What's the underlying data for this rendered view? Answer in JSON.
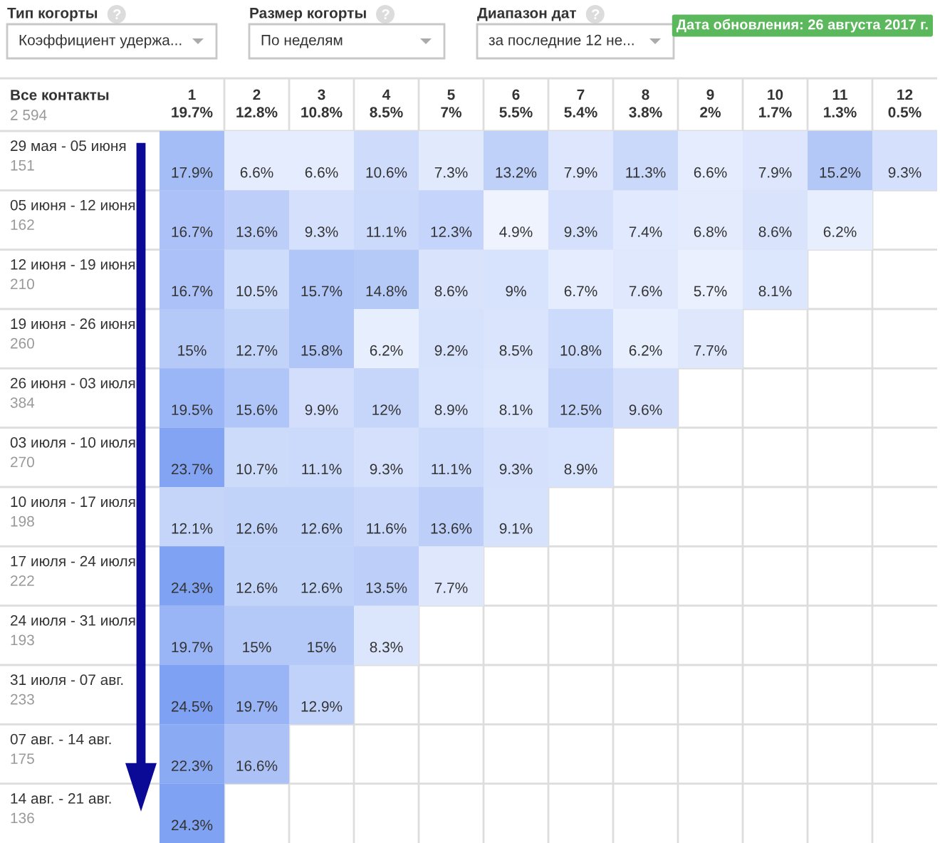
{
  "chart_data": {
    "type": "heatmap",
    "annotations": [
      "Тип когорты",
      "Коэффициент удержа...",
      "Размер когорты",
      "По неделям",
      "Диапазон дат",
      "за последние 12 не...",
      "Дата обновления: 26 августа 2017 г."
    ],
    "ylabel": "Все контакты",
    "y2label": "2 594",
    "categories": [
      "1\n19.7%",
      "2\n12.8%",
      "3\n10.8%",
      "4\n8.5%",
      "5\n7%",
      "6\n5.5%",
      "7\n5.4%",
      "8\n3.8%",
      "9\n2%",
      "10\n1.7%",
      "11\n1.3%",
      "12\n0.5%"
    ],
    "y_categories": [
      "29 мая - 05 июня",
      "05 июня - 12 июня",
      "12 июня - 19 июня",
      "19 июня - 26 июня",
      "26 июня - 03 июля",
      "03 июля - 10 июля",
      "10 июля - 17 июля",
      "17 июля - 24 июля",
      "24 июля - 31 июля",
      "31 июля - 07 авг.",
      "07 авг. - 14 авг.",
      "14 авг. - 21 авг."
    ],
    "y2_categories": [
      "151",
      "162",
      "210",
      "260",
      "384",
      "270",
      "198",
      "222",
      "193",
      "233",
      "175",
      "136"
    ],
    "cells": [
      [
        17.9,
        6.6,
        6.6,
        10.6,
        7.3,
        13.2,
        7.9,
        11.3,
        6.6,
        7.9,
        15.2,
        9.3
      ],
      [
        16.7,
        13.6,
        9.3,
        11.1,
        12.3,
        4.9,
        9.3,
        7.4,
        6.8,
        8.6,
        6.2,
        null
      ],
      [
        16.7,
        10.5,
        15.7,
        14.8,
        8.6,
        9,
        6.7,
        7.6,
        5.7,
        8.1,
        null,
        null
      ],
      [
        15,
        12.7,
        15.8,
        6.2,
        9.2,
        8.5,
        10.8,
        6.2,
        7.7,
        null,
        null,
        null
      ],
      [
        19.5,
        15.6,
        9.9,
        12,
        8.9,
        8.1,
        12.5,
        9.6,
        null,
        null,
        null,
        null
      ],
      [
        23.7,
        10.7,
        11.1,
        9.3,
        11.1,
        9.3,
        8.9,
        null,
        null,
        null,
        null,
        null
      ],
      [
        12.1,
        12.6,
        12.6,
        11.6,
        13.6,
        9.1,
        null,
        null,
        null,
        null,
        null,
        null
      ],
      [
        24.3,
        12.6,
        12.6,
        13.5,
        7.7,
        null,
        null,
        null,
        null,
        null,
        null,
        null
      ],
      [
        19.7,
        15,
        15,
        8.3,
        null,
        null,
        null,
        null,
        null,
        null,
        null,
        null
      ],
      [
        24.5,
        19.7,
        12.9,
        null,
        null,
        null,
        null,
        null,
        null,
        null,
        null,
        null
      ],
      [
        22.3,
        16.6,
        null,
        null,
        null,
        null,
        null,
        null,
        null,
        null,
        null,
        null
      ],
      [
        24.3,
        null,
        null,
        null,
        null,
        null,
        null,
        null,
        null,
        null,
        null,
        null
      ]
    ],
    "cell_labels": [
      [
        "17.9%",
        "6.6%",
        "6.6%",
        "10.6%",
        "7.3%",
        "13.2%",
        "7.9%",
        "11.3%",
        "6.6%",
        "7.9%",
        "15.2%",
        "9.3%"
      ],
      [
        "16.7%",
        "13.6%",
        "9.3%",
        "11.1%",
        "12.3%",
        "4.9%",
        "9.3%",
        "7.4%",
        "6.8%",
        "8.6%",
        "6.2%",
        null
      ],
      [
        "16.7%",
        "10.5%",
        "15.7%",
        "14.8%",
        "8.6%",
        "9%",
        "6.7%",
        "7.6%",
        "5.7%",
        "8.1%",
        null,
        null
      ],
      [
        "15%",
        "12.7%",
        "15.8%",
        "6.2%",
        "9.2%",
        "8.5%",
        "10.8%",
        "6.2%",
        "7.7%",
        null,
        null,
        null
      ],
      [
        "19.5%",
        "15.6%",
        "9.9%",
        "12%",
        "8.9%",
        "8.1%",
        "12.5%",
        "9.6%",
        null,
        null,
        null,
        null
      ],
      [
        "23.7%",
        "10.7%",
        "11.1%",
        "9.3%",
        "11.1%",
        "9.3%",
        "8.9%",
        null,
        null,
        null,
        null,
        null
      ],
      [
        "12.1%",
        "12.6%",
        "12.6%",
        "11.6%",
        "13.6%",
        "9.1%",
        null,
        null,
        null,
        null,
        null,
        null
      ],
      [
        "24.3%",
        "12.6%",
        "12.6%",
        "13.5%",
        "7.7%",
        null,
        null,
        null,
        null,
        null,
        null,
        null
      ],
      [
        "19.7%",
        "15%",
        "15%",
        "8.3%",
        null,
        null,
        null,
        null,
        null,
        null,
        null,
        null
      ],
      [
        "24.5%",
        "19.7%",
        "12.9%",
        null,
        null,
        null,
        null,
        null,
        null,
        null,
        null,
        null
      ],
      [
        "22.3%",
        "16.6%",
        null,
        null,
        null,
        null,
        null,
        null,
        null,
        null,
        null,
        null
      ],
      [
        "24.3%",
        null,
        null,
        null,
        null,
        null,
        null,
        null,
        null,
        null,
        null,
        null
      ]
    ],
    "colors": [
      "#eef3fe",
      "#7fa1f3"
    ],
    "grid": true
  }
}
